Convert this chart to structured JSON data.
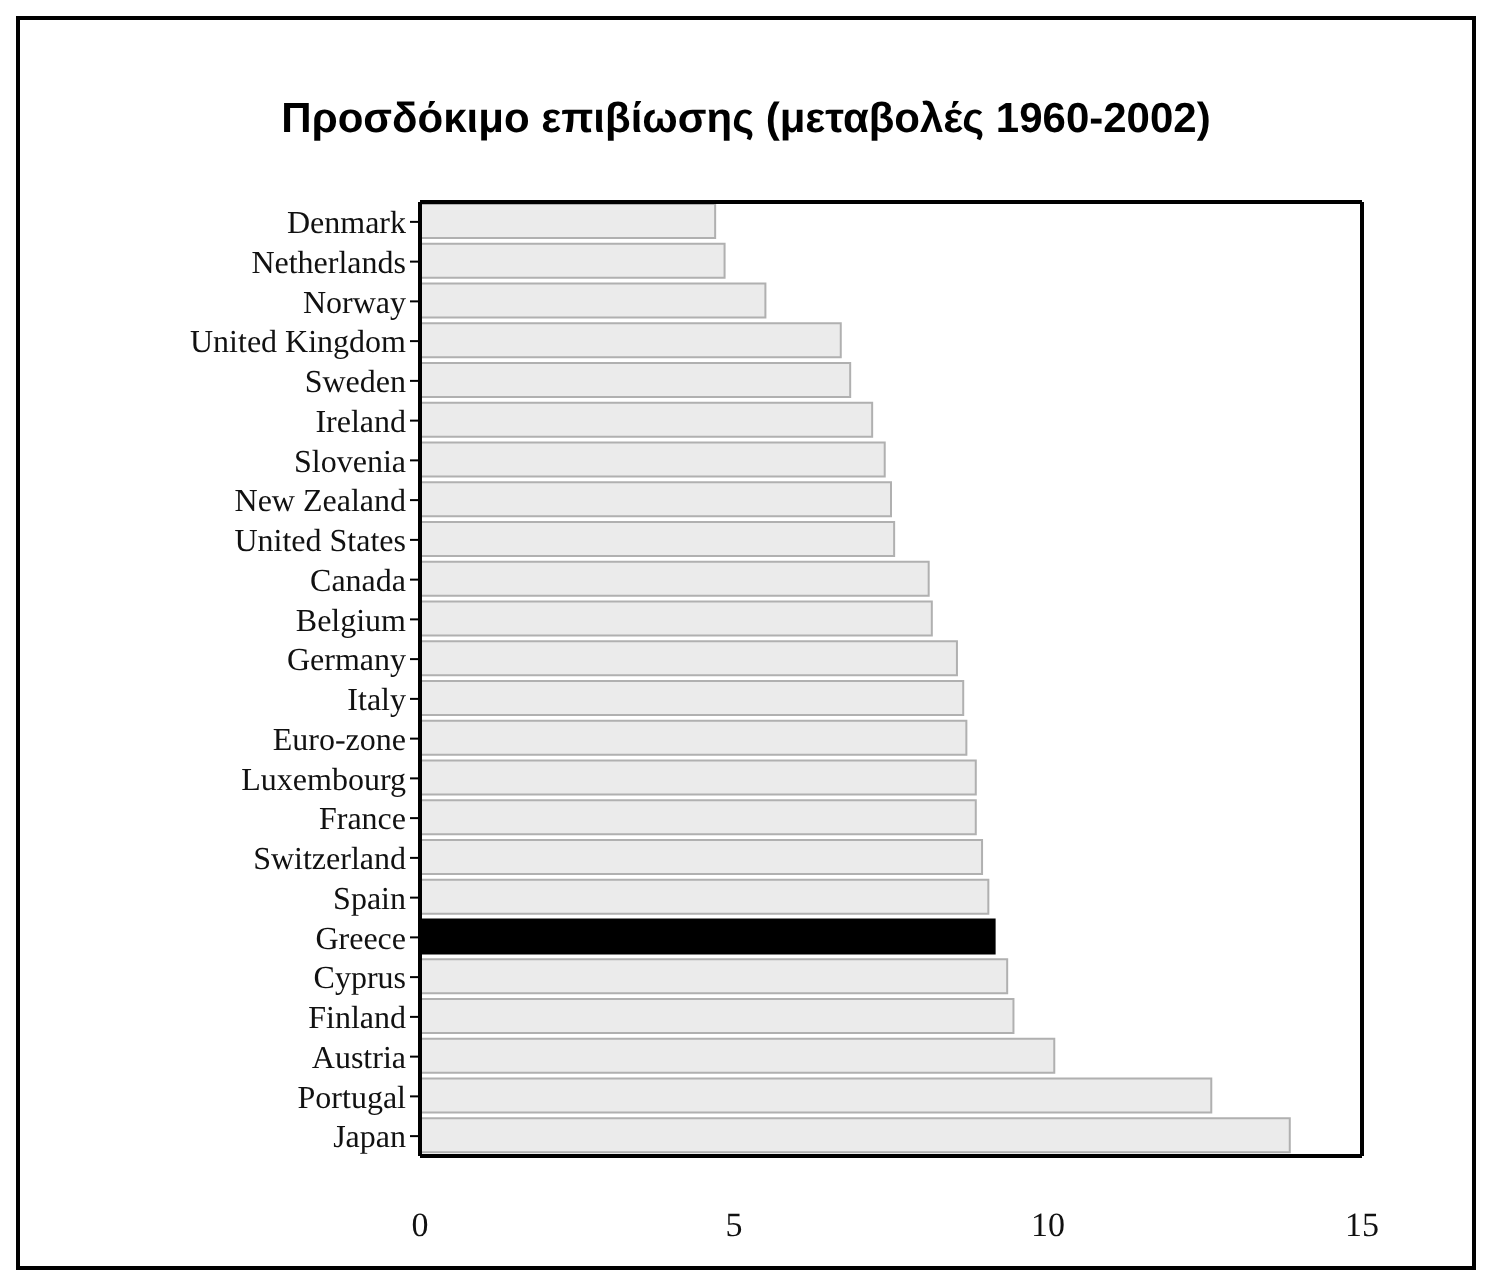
{
  "chart_data": {
    "type": "bar",
    "orientation": "horizontal",
    "title": "Προσδόκιμο επιβίωσης (μεταβολές 1960-2002)",
    "categories": [
      "Denmark",
      "Netherlands",
      "Norway",
      "United Kingdom",
      "Sweden",
      "Ireland",
      "Slovenia",
      "New Zealand",
      "United States",
      "Canada",
      "Belgium",
      "Germany",
      "Italy",
      "Euro-zone",
      "Luxembourg",
      "France",
      "Switzerland",
      "Spain",
      "Greece",
      "Cyprus",
      "Finland",
      "Austria",
      "Portugal",
      "Japan"
    ],
    "values": [
      4.7,
      4.85,
      5.5,
      6.7,
      6.85,
      7.2,
      7.4,
      7.5,
      7.55,
      8.1,
      8.15,
      8.55,
      8.65,
      8.7,
      8.85,
      8.85,
      8.95,
      9.05,
      9.15,
      9.35,
      9.45,
      10.1,
      12.6,
      13.85
    ],
    "colors": [
      "#ebebeb",
      "#ebebeb",
      "#ebebeb",
      "#ebebeb",
      "#ebebeb",
      "#ebebeb",
      "#ebebeb",
      "#ebebeb",
      "#ebebeb",
      "#ebebeb",
      "#ebebeb",
      "#ebebeb",
      "#ebebeb",
      "#ebebeb",
      "#ebebeb",
      "#ebebeb",
      "#ebebeb",
      "#ebebeb",
      "#000000",
      "#ebebeb",
      "#ebebeb",
      "#ebebeb",
      "#ebebeb",
      "#ebebeb"
    ],
    "xlim": [
      0,
      15
    ],
    "xticks": [
      0,
      5,
      10,
      15
    ],
    "grid": false,
    "legend": false
  }
}
